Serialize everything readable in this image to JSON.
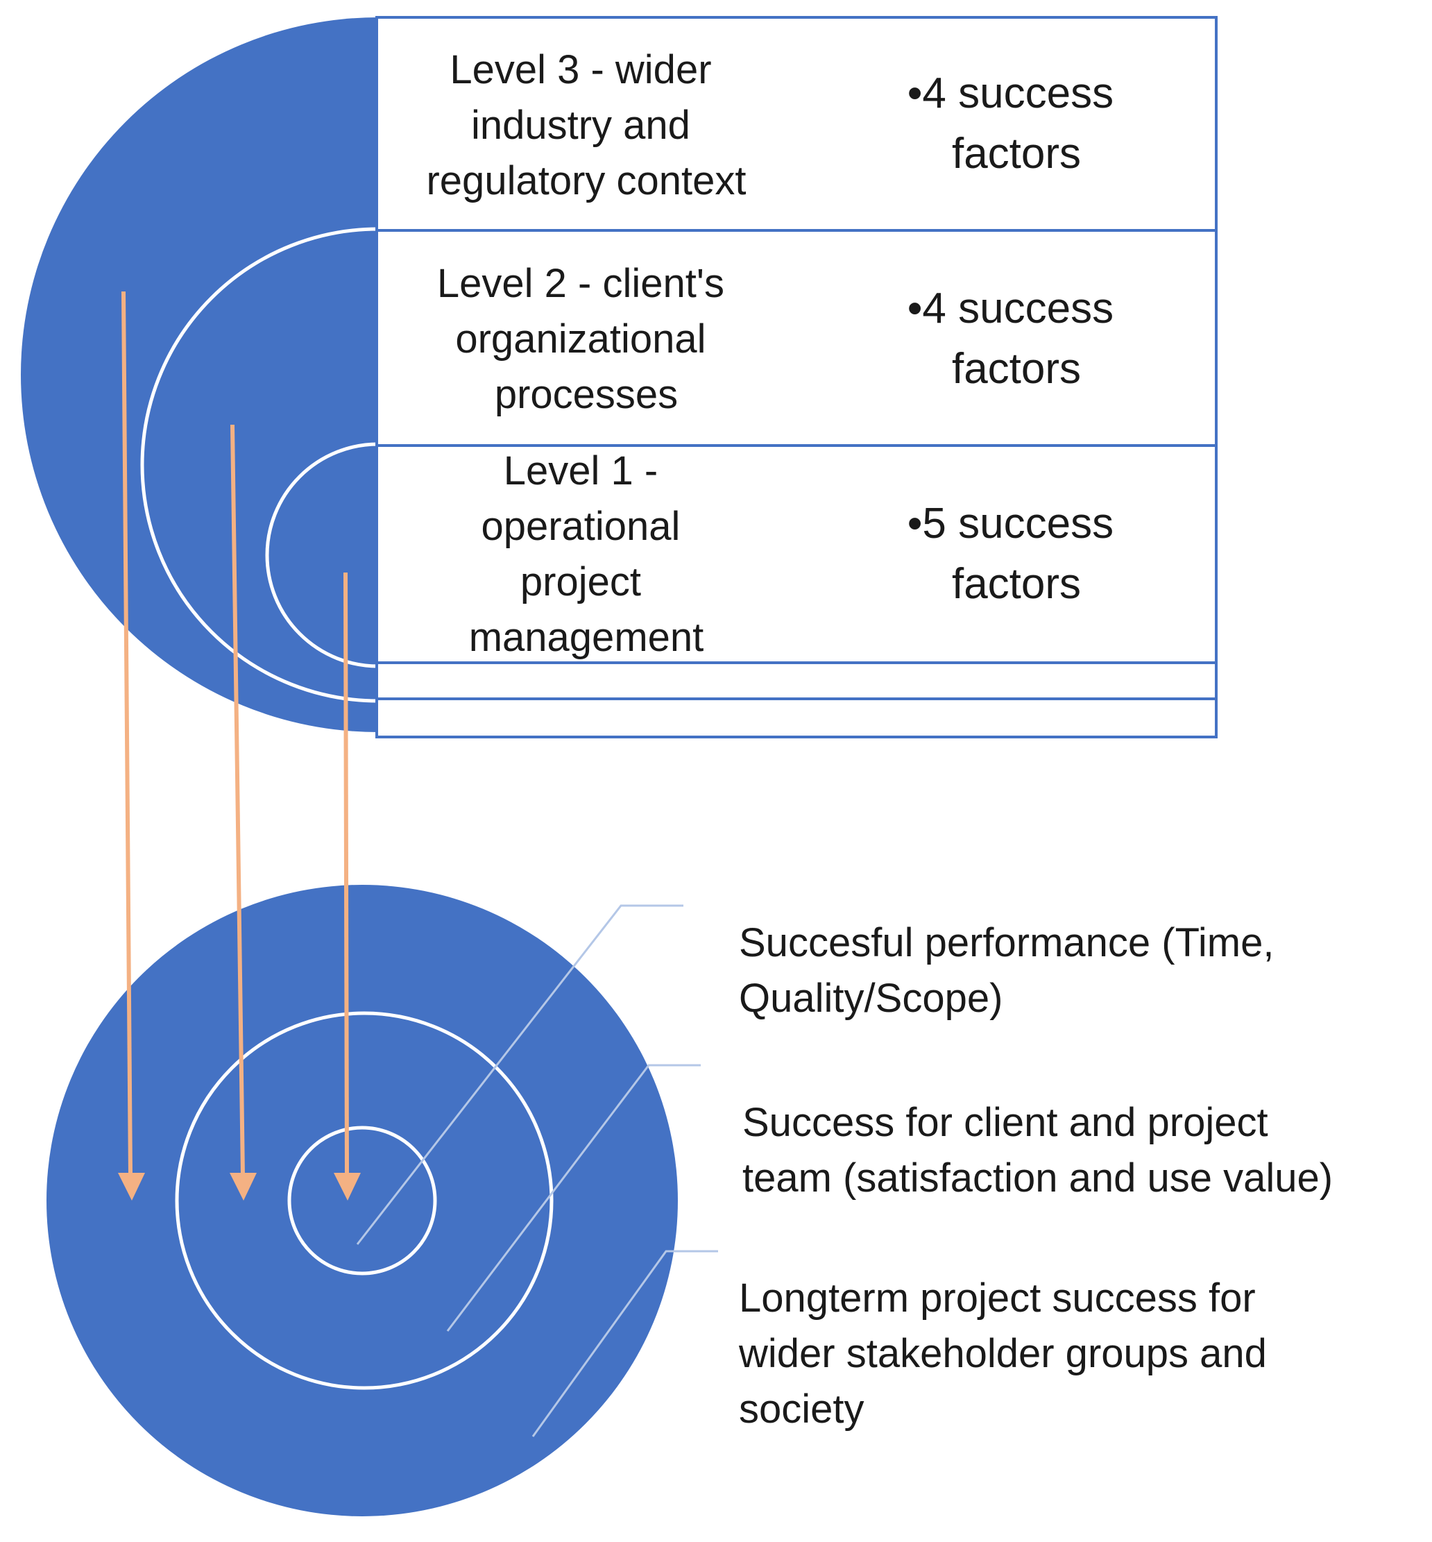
{
  "colors": {
    "disc_fill": "#4472C4",
    "ring_stroke": "#ffffff",
    "table_border": "#4472C4",
    "table_fill": "#ffffff",
    "arrow": "#F4B183",
    "leader_line": "#B4C7E7",
    "text": "#1a1a1a"
  },
  "levels": [
    {
      "label_lines": [
        "Level 3 - wider",
        "industry and",
        "regulatory context"
      ],
      "factor_lines": [
        "•4 success",
        "factors"
      ]
    },
    {
      "label_lines": [
        "Level 2 -  client's",
        "organizational",
        "processes"
      ],
      "factor_lines": [
        "•4 success",
        "factors"
      ]
    },
    {
      "label_lines": [
        "Level 1 -",
        "operational",
        "project",
        "management"
      ],
      "factor_lines": [
        "•5 success",
        "factors"
      ]
    }
  ],
  "success_labels": [
    {
      "lines": [
        "Succesful performance (Time,",
        "Quality/Scope)"
      ]
    },
    {
      "lines": [
        "Success for client and project",
        "team (satisfaction and use value)"
      ]
    },
    {
      "lines": [
        "Longterm project success for",
        "wider stakeholder groups and",
        "society"
      ]
    }
  ]
}
